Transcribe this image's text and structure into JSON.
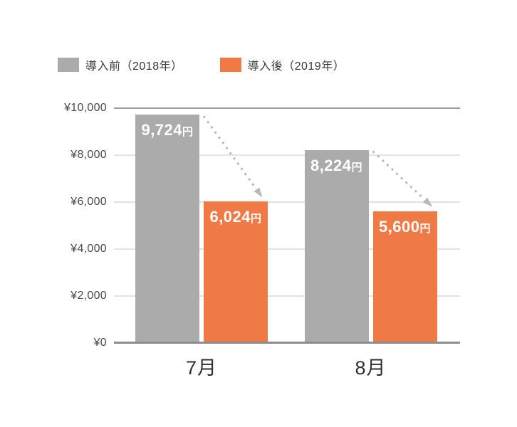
{
  "legend": {
    "items": [
      {
        "label": "導入前（2018年）",
        "color": "#ababab"
      },
      {
        "label": "導入後（2019年）",
        "color": "#ef7a45"
      }
    ]
  },
  "chart_data": {
    "type": "bar",
    "title": "",
    "categories": [
      "7月",
      "8月"
    ],
    "series": [
      {
        "name": "導入前（2018年）",
        "color": "#ababab",
        "values": [
          9724,
          8224
        ],
        "value_labels": [
          "9,724",
          "8,224"
        ]
      },
      {
        "name": "導入後（2019年）",
        "color": "#ef7a45",
        "values": [
          6024,
          5600
        ],
        "value_labels": [
          "6,024",
          "5,600"
        ]
      }
    ],
    "value_suffix": "円",
    "xlabel": "",
    "ylabel": "",
    "ylim": [
      0,
      10000
    ],
    "y_ticks": [
      {
        "value": 0,
        "label": "¥0"
      },
      {
        "value": 2000,
        "label": "¥2,000"
      },
      {
        "value": 4000,
        "label": "¥4,000"
      },
      {
        "value": 6000,
        "label": "¥6,000"
      },
      {
        "value": 8000,
        "label": "¥8,000"
      },
      {
        "value": 10000,
        "label": "¥10,000"
      }
    ],
    "grid": true,
    "legend_position": "top-left",
    "annotations": [
      {
        "type": "decrease-arrow",
        "category": "7月",
        "from_series": "導入前（2018年）",
        "to_series": "導入後（2019年）"
      },
      {
        "type": "decrease-arrow",
        "category": "8月",
        "from_series": "導入前（2018年）",
        "to_series": "導入後（2019年）"
      }
    ],
    "colors": {
      "grid_minor": "#e3e3e3",
      "grid_major": "#9a9a9a",
      "baseline": "#8d8d8d",
      "arrow": "#b9b9b9",
      "bar_label_text": "#ffffff",
      "axis_text": "#4a4a4a",
      "category_text": "#2f2f2f"
    }
  }
}
